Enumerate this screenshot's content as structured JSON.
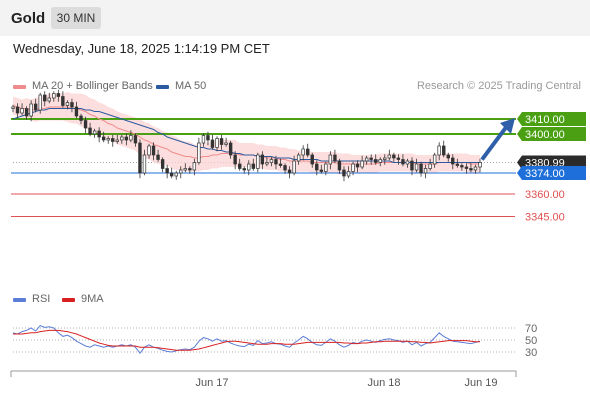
{
  "header": {
    "title": "Gold",
    "timeframe": "30 MIN"
  },
  "timestamp": "Wednesday, June 18, 2025 1:14:19 PM CET",
  "legend": {
    "ma20": {
      "label": "MA 20 + Bollinger Bands",
      "color": "#f08c8c"
    },
    "ma50": {
      "label": "MA 50",
      "color": "#2c5aa0"
    },
    "rsi": {
      "label": "RSI",
      "color": "#5b7fd6"
    },
    "ma9": {
      "label": "9MA",
      "color": "#d92020"
    }
  },
  "credit": "Research © 2025 Trading Central",
  "chart_data": [
    {
      "type": "candlestick",
      "title": "Gold",
      "ylim": [
        3326,
        3426
      ],
      "x_ticks": [
        "Jun 17",
        "Jun 18",
        "Jun 19"
      ],
      "closes": [
        3418,
        3414,
        3417,
        3412,
        3420,
        3416,
        3426,
        3422,
        3424,
        3427,
        3425,
        3419,
        3421,
        3418,
        3412,
        3409,
        3404,
        3400,
        3402,
        3398,
        3396,
        3397,
        3395,
        3396,
        3398,
        3396,
        3399,
        3394,
        3374,
        3386,
        3392,
        3386,
        3383,
        3377,
        3374,
        3372,
        3374,
        3376,
        3377,
        3376,
        3381,
        3394,
        3399,
        3396,
        3391,
        3397,
        3393,
        3394,
        3386,
        3380,
        3377,
        3376,
        3380,
        3377,
        3386,
        3380,
        3381,
        3383,
        3380,
        3379,
        3376,
        3374,
        3382,
        3386,
        3390,
        3386,
        3380,
        3376,
        3375,
        3380,
        3386,
        3382,
        3376,
        3372,
        3375,
        3380,
        3378,
        3382,
        3384,
        3383,
        3381,
        3383,
        3384,
        3386,
        3384,
        3383,
        3380,
        3382,
        3376,
        3380,
        3374,
        3377,
        3380,
        3386,
        3392,
        3386,
        3384,
        3380,
        3379,
        3378,
        3377,
        3376,
        3378,
        3380.99
      ],
      "ma20": [
        3419,
        3418,
        3417,
        3417,
        3416,
        3416,
        3417,
        3417,
        3418,
        3418,
        3418,
        3418,
        3418,
        3417,
        3417,
        3416,
        3415,
        3413,
        3412,
        3410,
        3409,
        3407,
        3406,
        3404,
        3403,
        3402,
        3401,
        3400,
        3398,
        3396,
        3395,
        3393,
        3392,
        3391,
        3390,
        3388,
        3387,
        3386,
        3385,
        3385,
        3384,
        3384,
        3385,
        3385,
        3386,
        3386,
        3387,
        3387,
        3387,
        3387,
        3386,
        3386,
        3386,
        3386,
        3385,
        3385,
        3384,
        3384,
        3384,
        3383,
        3383,
        3382,
        3382,
        3382,
        3382,
        3382,
        3381,
        3381,
        3381,
        3381,
        3381,
        3381,
        3380,
        3380,
        3380,
        3380,
        3380,
        3380,
        3380,
        3380,
        3380,
        3381,
        3381,
        3381,
        3381,
        3381,
        3381,
        3381,
        3381,
        3380,
        3380,
        3380,
        3380,
        3380,
        3381,
        3381,
        3381,
        3381,
        3381,
        3381,
        3381,
        3380,
        3380,
        3380
      ],
      "ma50": [
        3410,
        3411,
        3412,
        3413,
        3414,
        3415,
        3416,
        3416,
        3417,
        3417,
        3417,
        3417,
        3417,
        3417,
        3417,
        3417,
        3416,
        3416,
        3415,
        3415,
        3414,
        3413,
        3412,
        3411,
        3410,
        3409,
        3408,
        3407,
        3406,
        3405,
        3404,
        3403,
        3401,
        3400,
        3398,
        3397,
        3396,
        3395,
        3394,
        3393,
        3392,
        3391,
        3391,
        3390,
        3390,
        3389,
        3389,
        3388,
        3388,
        3387,
        3387,
        3386,
        3386,
        3386,
        3385,
        3385,
        3385,
        3385,
        3384,
        3384,
        3384,
        3384,
        3383,
        3383,
        3383,
        3383,
        3383,
        3383,
        3382,
        3382,
        3382,
        3382,
        3382,
        3382,
        3382,
        3382,
        3382,
        3382,
        3382,
        3382,
        3382,
        3382,
        3382,
        3382,
        3381,
        3381,
        3381,
        3381,
        3381,
        3381,
        3381,
        3381,
        3381,
        3381,
        3381,
        3381,
        3381,
        3381,
        3381,
        3381,
        3381,
        3381,
        3381,
        3381
      ],
      "band_width": [
        6,
        6,
        6,
        7,
        7,
        8,
        8,
        8,
        9,
        9,
        9,
        9,
        10,
        10,
        10,
        11,
        11,
        11,
        11,
        11,
        11,
        11,
        11,
        11,
        11,
        11,
        11,
        11,
        12,
        12,
        12,
        12,
        12,
        11,
        11,
        11,
        11,
        10,
        10,
        10,
        9,
        9,
        9,
        9,
        9,
        9,
        9,
        9,
        9,
        9,
        8,
        8,
        8,
        8,
        8,
        8,
        8,
        8,
        8,
        8,
        8,
        8,
        8,
        7,
        7,
        7,
        7,
        7,
        7,
        7,
        7,
        7,
        7,
        7,
        7,
        6,
        6,
        6,
        6,
        6,
        6,
        6,
        6,
        6,
        6,
        6,
        6,
        6,
        6,
        6,
        6,
        6,
        6,
        6,
        6,
        6,
        6,
        6,
        6,
        6,
        6,
        6,
        6,
        6
      ],
      "levels": [
        {
          "value": 3410.0,
          "label": "3410.00",
          "color": "#4aa012"
        },
        {
          "value": 3400.0,
          "label": "3400.00",
          "color": "#4aa012"
        },
        {
          "value": 3380.99,
          "label": "3380.99",
          "color": "#333333"
        },
        {
          "value": 3374.0,
          "label": "3374.00",
          "color": "#1e6fd9"
        },
        {
          "value": 3360.0,
          "label": "3360.00",
          "color": "#e05050"
        },
        {
          "value": 3345.0,
          "label": "3345.00",
          "color": "#e05050"
        }
      ],
      "last_price": 3380.99,
      "target_arrow": {
        "from": 3380.99,
        "to": 3410.0
      }
    },
    {
      "type": "line",
      "title": "RSI",
      "ylim": [
        10,
        90
      ],
      "y_ticks": [
        70,
        50,
        30
      ],
      "series": [
        {
          "name": "RSI",
          "values": [
            62,
            60,
            64,
            66,
            70,
            65,
            74,
            71,
            72,
            70,
            62,
            56,
            58,
            54,
            48,
            44,
            40,
            38,
            42,
            40,
            38,
            40,
            38,
            40,
            42,
            40,
            42,
            38,
            28,
            38,
            42,
            38,
            36,
            33,
            31,
            30,
            32,
            34,
            35,
            34,
            38,
            48,
            54,
            52,
            48,
            52,
            48,
            49,
            45,
            42,
            40,
            39,
            43,
            41,
            49,
            44,
            45,
            47,
            44,
            43,
            40,
            38,
            45,
            50,
            56,
            52,
            46,
            42,
            41,
            46,
            52,
            48,
            42,
            38,
            41,
            46,
            44,
            48,
            50,
            48,
            46,
            49,
            51,
            52,
            50,
            49,
            46,
            48,
            42,
            46,
            40,
            44,
            46,
            54,
            62,
            56,
            52,
            48,
            47,
            46,
            45,
            44,
            46,
            48
          ]
        },
        {
          "name": "9MA",
          "values": [
            60,
            60,
            60,
            61,
            62,
            62,
            64,
            65,
            66,
            66,
            66,
            65,
            64,
            62,
            60,
            57,
            54,
            51,
            48,
            45,
            43,
            41,
            40,
            40,
            40,
            40,
            40,
            40,
            38,
            38,
            38,
            38,
            37,
            36,
            35,
            34,
            33,
            33,
            33,
            33,
            34,
            35,
            37,
            39,
            41,
            43,
            45,
            47,
            48,
            48,
            47,
            46,
            45,
            44,
            43,
            43,
            43,
            44,
            44,
            44,
            43,
            43,
            43,
            44,
            45,
            46,
            46,
            46,
            46,
            46,
            46,
            46,
            46,
            45,
            45,
            44,
            44,
            45,
            45,
            46,
            47,
            47,
            48,
            48,
            48,
            48,
            48,
            48,
            47,
            47,
            46,
            46,
            45,
            46,
            47,
            48,
            49,
            49,
            49,
            49,
            49,
            48,
            47,
            47
          ]
        }
      ]
    }
  ]
}
